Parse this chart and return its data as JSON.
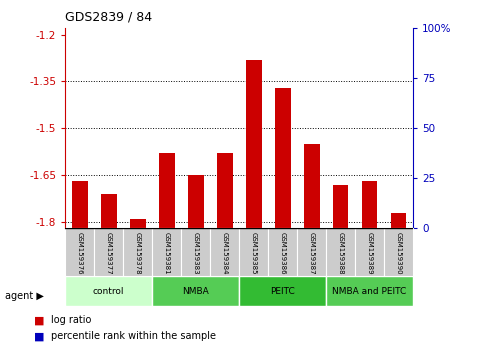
{
  "title": "GDS2839 / 84",
  "samples": [
    "GSM159376",
    "GSM159377",
    "GSM159378",
    "GSM159381",
    "GSM159383",
    "GSM159384",
    "GSM159385",
    "GSM159386",
    "GSM159387",
    "GSM159388",
    "GSM159389",
    "GSM159390"
  ],
  "log_ratio": [
    -1.67,
    -1.71,
    -1.79,
    -1.58,
    -1.65,
    -1.58,
    -1.28,
    -1.37,
    -1.55,
    -1.68,
    -1.67,
    -1.77
  ],
  "percentile": [
    2,
    2,
    2,
    2,
    2,
    2,
    2,
    2,
    2,
    2,
    2,
    2
  ],
  "groups": [
    {
      "label": "control",
      "start": 0,
      "end": 3,
      "color": "#ccffcc"
    },
    {
      "label": "NMBA",
      "start": 3,
      "end": 6,
      "color": "#55cc55"
    },
    {
      "label": "PEITC",
      "start": 6,
      "end": 9,
      "color": "#33bb33"
    },
    {
      "label": "NMBA and PEITC",
      "start": 9,
      "end": 12,
      "color": "#55cc55"
    }
  ],
  "ylim": [
    -1.82,
    -1.18
  ],
  "yticks": [
    -1.8,
    -1.65,
    -1.5,
    -1.35,
    -1.2
  ],
  "ytick_labels": [
    "-1.8",
    "-1.65",
    "-1.5",
    "-1.35",
    "-1.2"
  ],
  "right_yticks": [
    0,
    25,
    50,
    75,
    100
  ],
  "right_ytick_labels": [
    "0",
    "25",
    "50",
    "75",
    "100%"
  ],
  "bar_color_log": "#cc0000",
  "bar_color_pct": "#0000bb",
  "axis_color_left": "#cc0000",
  "axis_color_right": "#0000bb",
  "legend_log": "log ratio",
  "legend_pct": "percentile rank within the sample"
}
